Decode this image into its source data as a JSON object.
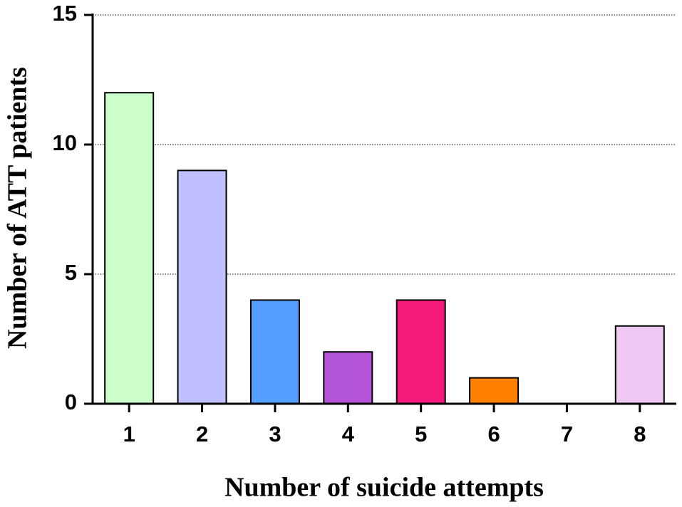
{
  "chart_data": {
    "type": "bar",
    "x_label": "Number of suicide attempts",
    "y_label": "Number of ATT patients",
    "categories": [
      "1",
      "2",
      "3",
      "4",
      "5",
      "6",
      "7",
      "8"
    ],
    "values": [
      12,
      9,
      4,
      2,
      4,
      1,
      0,
      3
    ],
    "colors": [
      "#ccffcc",
      "#c0c0ff",
      "#55a0ff",
      "#b455d8",
      "#f5197a",
      "#ff8000",
      null,
      "#f0c8f4"
    ],
    "ylim": [
      0,
      15
    ],
    "yticks": [
      0,
      5,
      10,
      15
    ],
    "grid": true
  }
}
